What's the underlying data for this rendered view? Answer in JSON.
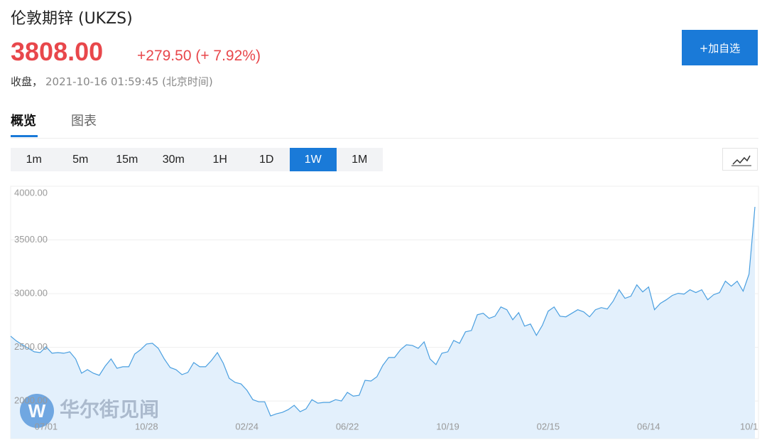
{
  "header": {
    "title": "伦敦期锌 (UKZS)",
    "price": "3808.00",
    "change": "+279.50 (+ 7.92%)",
    "status": "收盘，",
    "time": "2021-10-16 01:59:45 (北京时间)",
    "button": "+加自选"
  },
  "tabs": [
    "概览",
    "图表"
  ],
  "intervals": [
    "1m",
    "5m",
    "15m",
    "30m",
    "1H",
    "1D",
    "1W",
    "1M"
  ],
  "watermark": "华尔街见闻",
  "chart_data": {
    "type": "area",
    "categories": [
      null,
      null,
      null,
      null,
      null,
      null,
      "07/01",
      null,
      null,
      null,
      null,
      null,
      null,
      null,
      null,
      null,
      null,
      null,
      null,
      null,
      null,
      null,
      null,
      "10/28",
      null,
      null,
      null,
      null,
      null,
      null,
      null,
      null,
      null,
      null,
      null,
      null,
      null,
      null,
      null,
      null,
      "02/24",
      null,
      null,
      null,
      null,
      null,
      null,
      null,
      null,
      null,
      null,
      null,
      null,
      null,
      null,
      null,
      null,
      "06/22",
      null,
      null,
      null,
      null,
      null,
      null,
      null,
      null,
      null,
      null,
      null,
      null,
      null,
      null,
      null,
      null,
      "10/19",
      null,
      null,
      null,
      null,
      null,
      null,
      null,
      null,
      null,
      null,
      null,
      null,
      null,
      null,
      null,
      null,
      "02/15",
      null,
      null,
      null,
      null,
      null,
      null,
      null,
      null,
      null,
      null,
      null,
      null,
      null,
      null,
      null,
      null,
      "06/14",
      null,
      null,
      null,
      null,
      null,
      null,
      null,
      null,
      null,
      null,
      null,
      null,
      null,
      null,
      null,
      null,
      "10/1",
      null
    ],
    "values": [
      2604,
      2558,
      2524,
      2491,
      2458,
      2451,
      2505,
      2445,
      2451,
      2445,
      2458,
      2392,
      2259,
      2292,
      2259,
      2239,
      2325,
      2392,
      2305,
      2319,
      2319,
      2438,
      2478,
      2531,
      2538,
      2491,
      2392,
      2312,
      2292,
      2246,
      2266,
      2358,
      2319,
      2319,
      2378,
      2451,
      2352,
      2212,
      2173,
      2159,
      2100,
      2013,
      1993,
      1993,
      1861,
      1881,
      1894,
      1920,
      1960,
      1900,
      1927,
      2013,
      1980,
      1987,
      1987,
      2013,
      2000,
      2080,
      2046,
      2053,
      2193,
      2186,
      2226,
      2332,
      2405,
      2405,
      2478,
      2524,
      2518,
      2491,
      2551,
      2392,
      2339,
      2445,
      2458,
      2564,
      2538,
      2644,
      2657,
      2803,
      2817,
      2770,
      2790,
      2876,
      2850,
      2757,
      2823,
      2697,
      2717,
      2611,
      2704,
      2837,
      2876,
      2790,
      2784,
      2817,
      2850,
      2830,
      2784,
      2850,
      2870,
      2857,
      2930,
      3036,
      2956,
      2976,
      3082,
      3016,
      3062,
      2850,
      2910,
      2943,
      2983,
      3003,
      2996,
      3036,
      3010,
      3036,
      2943,
      2990,
      3010,
      3116,
      3069,
      3116,
      3023,
      3182,
      3808
    ],
    "color": "#4a9fe0",
    "fill": "#e3f0fc",
    "ylim": [
      1650,
      4000
    ],
    "yticks": [
      {
        "value": 2000,
        "label": "2000.00"
      },
      {
        "value": 2500,
        "label": "2500.00"
      },
      {
        "value": 3000,
        "label": "3000.00"
      },
      {
        "value": 3500,
        "label": "3500.00"
      },
      {
        "value": 4000,
        "label": "4000.00"
      }
    ],
    "grid": true
  }
}
